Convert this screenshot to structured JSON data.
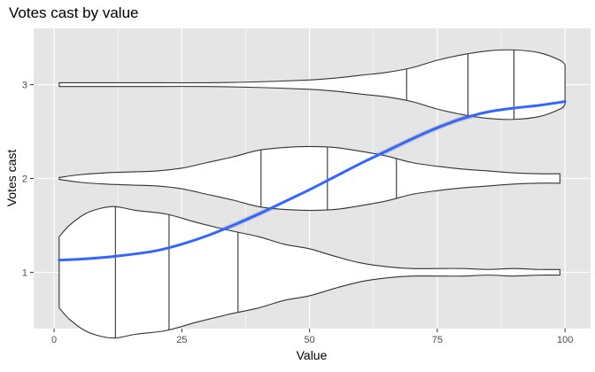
{
  "chart_data": {
    "type": "violin",
    "title": "Votes cast by value",
    "xlabel": "Value",
    "ylabel": "Votes cast",
    "xlim": [
      -4,
      105
    ],
    "ylim": [
      0.4,
      3.6
    ],
    "xticks": [
      0,
      25,
      50,
      75,
      100
    ],
    "yticks": [
      1,
      2,
      3
    ],
    "grid": true,
    "background": "#E5E5E5",
    "grid_color": "#FFFFFF",
    "violin_fill": "#FFFFFF",
    "violin_stroke": "#333333",
    "smooth_color": "#3366FF",
    "band_color": "#BDBDBD",
    "violins": [
      {
        "category": 1,
        "x_range": [
          1,
          99
        ],
        "quantiles": [
          12,
          22.5,
          36
        ],
        "profile": [
          [
            1,
            0.38
          ],
          [
            3,
            0.5
          ],
          [
            6,
            0.62
          ],
          [
            9,
            0.68
          ],
          [
            12,
            0.7
          ],
          [
            16,
            0.66
          ],
          [
            22,
            0.62
          ],
          [
            28,
            0.53
          ],
          [
            34,
            0.45
          ],
          [
            40,
            0.38
          ],
          [
            45,
            0.3
          ],
          [
            50,
            0.25
          ],
          [
            55,
            0.17
          ],
          [
            60,
            0.1
          ],
          [
            65,
            0.06
          ],
          [
            70,
            0.04
          ],
          [
            75,
            0.04
          ],
          [
            80,
            0.04
          ],
          [
            85,
            0.03
          ],
          [
            90,
            0.04
          ],
          [
            95,
            0.03
          ],
          [
            99,
            0.03
          ]
        ]
      },
      {
        "category": 2,
        "x_range": [
          1,
          99
        ],
        "quantiles": [
          40.5,
          53.5,
          67
        ],
        "profile": [
          [
            1,
            0.01
          ],
          [
            5,
            0.04
          ],
          [
            10,
            0.06
          ],
          [
            15,
            0.07
          ],
          [
            20,
            0.08
          ],
          [
            25,
            0.11
          ],
          [
            30,
            0.17
          ],
          [
            35,
            0.23
          ],
          [
            40,
            0.3
          ],
          [
            45,
            0.33
          ],
          [
            50,
            0.34
          ],
          [
            55,
            0.33
          ],
          [
            60,
            0.29
          ],
          [
            65,
            0.24
          ],
          [
            70,
            0.17
          ],
          [
            75,
            0.13
          ],
          [
            80,
            0.1
          ],
          [
            85,
            0.08
          ],
          [
            90,
            0.06
          ],
          [
            95,
            0.05
          ],
          [
            99,
            0.05
          ]
        ]
      },
      {
        "category": 3,
        "x_range": [
          1,
          100
        ],
        "quantiles": [
          69,
          81,
          90
        ],
        "profile": [
          [
            1,
            0.02
          ],
          [
            5,
            0.02
          ],
          [
            10,
            0.02
          ],
          [
            20,
            0.02
          ],
          [
            30,
            0.02
          ],
          [
            40,
            0.03
          ],
          [
            50,
            0.05
          ],
          [
            55,
            0.07
          ],
          [
            60,
            0.1
          ],
          [
            65,
            0.13
          ],
          [
            70,
            0.18
          ],
          [
            75,
            0.26
          ],
          [
            80,
            0.32
          ],
          [
            85,
            0.36
          ],
          [
            90,
            0.37
          ],
          [
            95,
            0.34
          ],
          [
            99,
            0.26
          ],
          [
            100,
            0.21
          ]
        ]
      }
    ],
    "smooth": [
      [
        1,
        1.13
      ],
      [
        5,
        1.14
      ],
      [
        10,
        1.16
      ],
      [
        15,
        1.19
      ],
      [
        20,
        1.23
      ],
      [
        25,
        1.3
      ],
      [
        30,
        1.39
      ],
      [
        35,
        1.5
      ],
      [
        40,
        1.62
      ],
      [
        45,
        1.75
      ],
      [
        50,
        1.88
      ],
      [
        55,
        2.02
      ],
      [
        60,
        2.16
      ],
      [
        65,
        2.29
      ],
      [
        70,
        2.42
      ],
      [
        75,
        2.54
      ],
      [
        80,
        2.64
      ],
      [
        85,
        2.71
      ],
      [
        90,
        2.75
      ],
      [
        95,
        2.78
      ],
      [
        100,
        2.82
      ]
    ],
    "smooth_se": [
      [
        1,
        0.07
      ],
      [
        10,
        0.04
      ],
      [
        20,
        0.03
      ],
      [
        30,
        0.03
      ],
      [
        40,
        0.03
      ],
      [
        50,
        0.03
      ],
      [
        60,
        0.03
      ],
      [
        70,
        0.03
      ],
      [
        80,
        0.03
      ],
      [
        90,
        0.04
      ],
      [
        100,
        0.08
      ]
    ]
  }
}
